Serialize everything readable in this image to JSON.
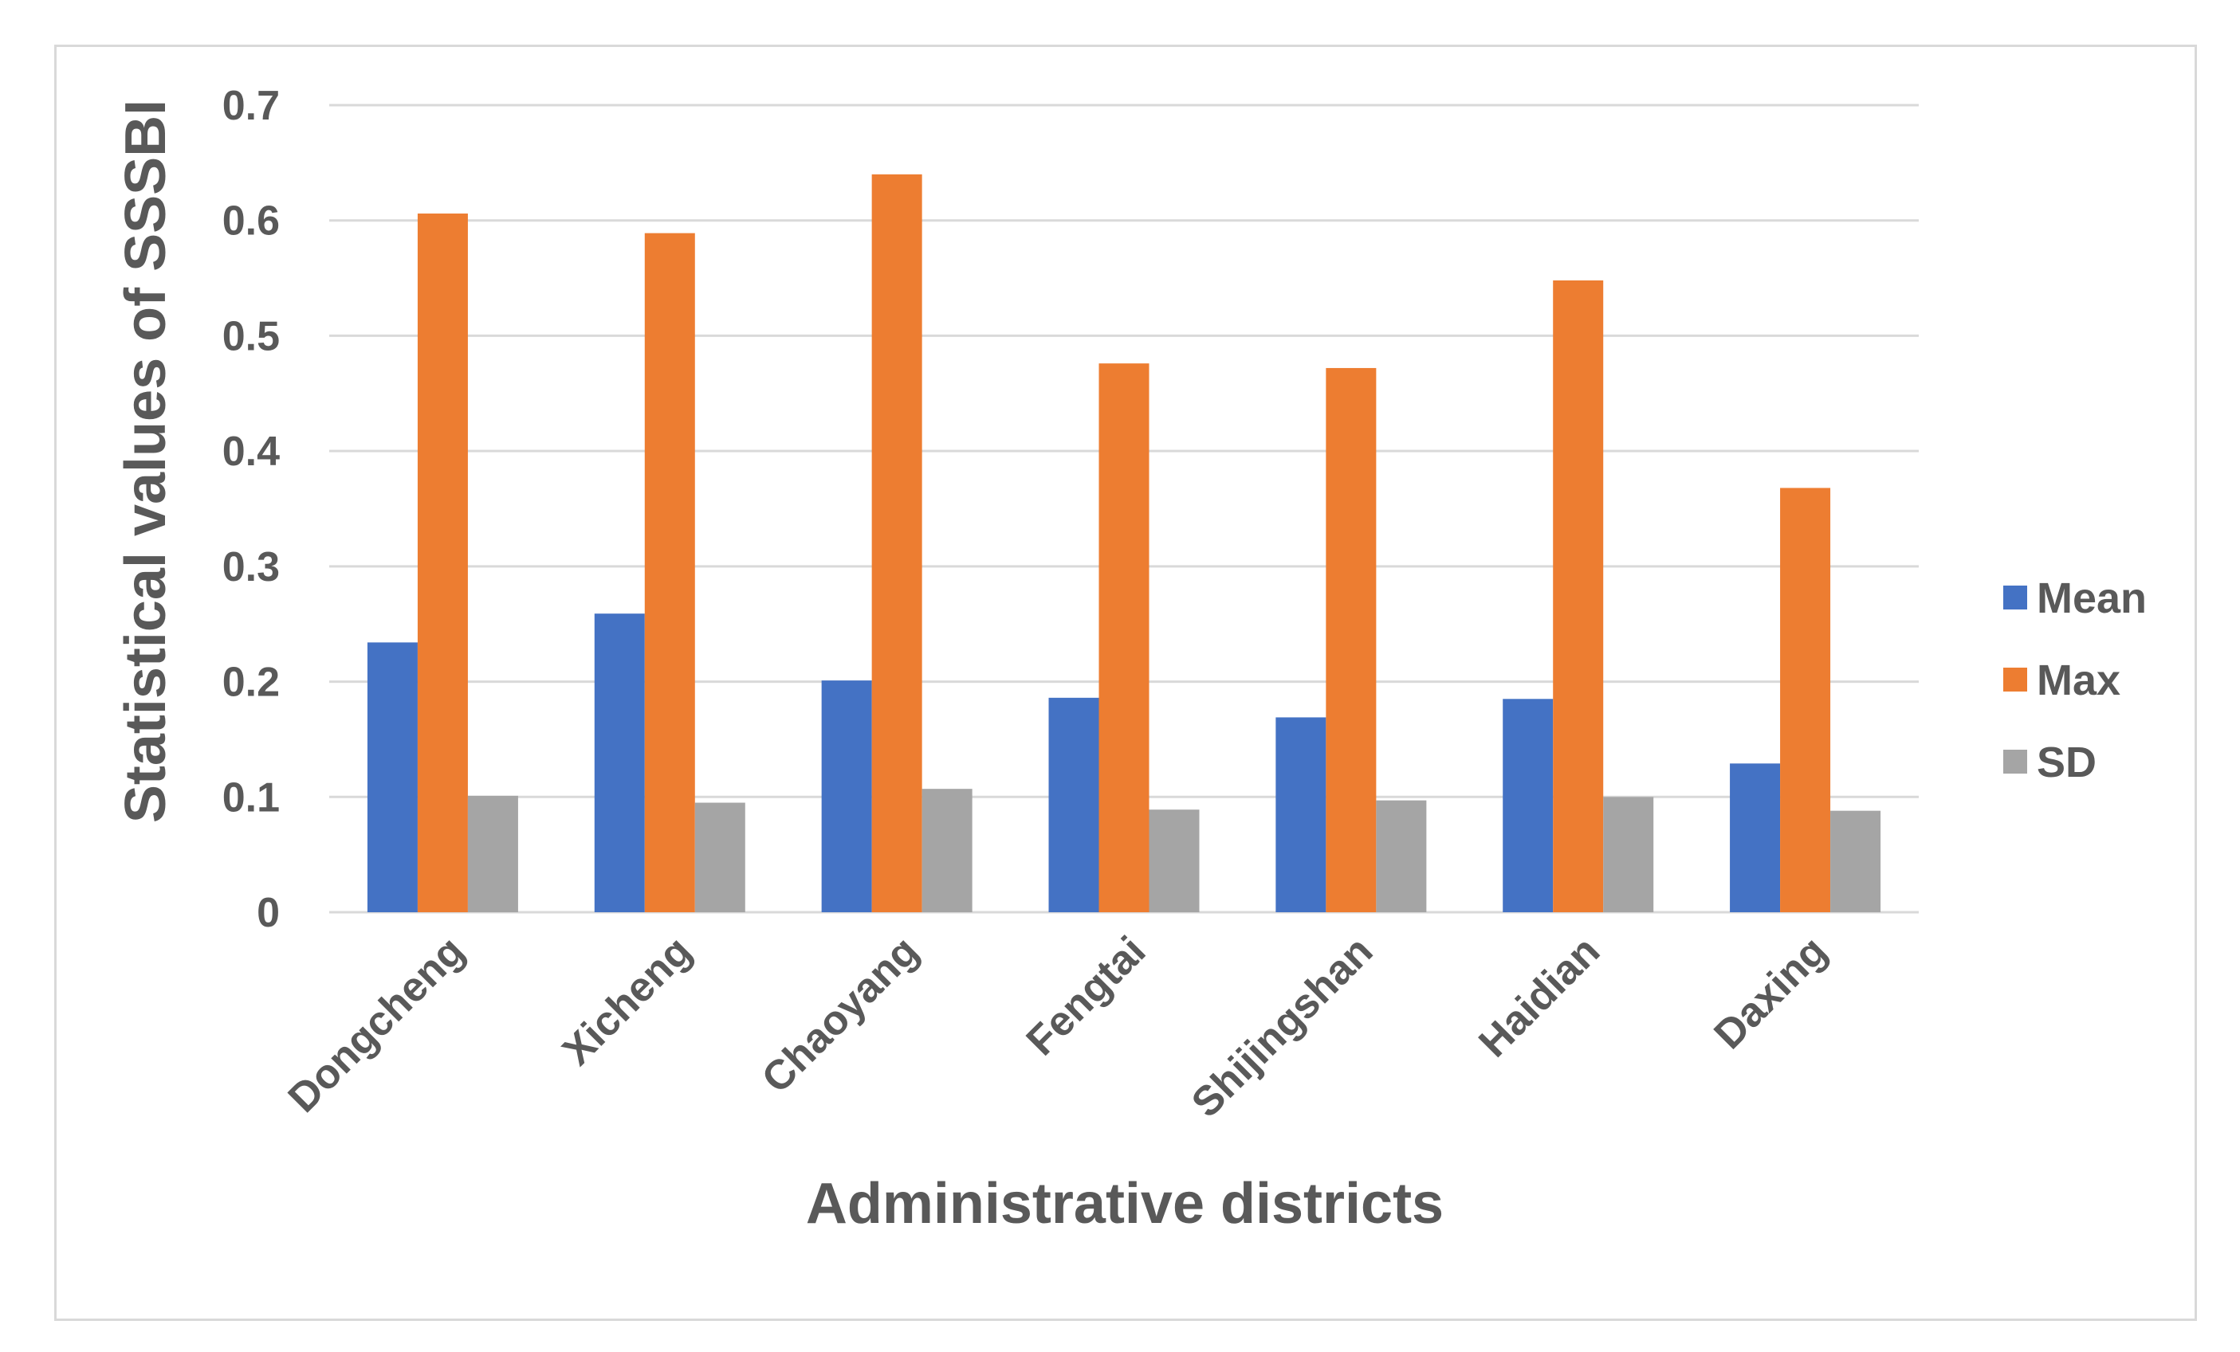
{
  "chart_data": {
    "type": "bar",
    "title": "",
    "xlabel": "Administrative districts",
    "ylabel": "Statistical values of SSSBI",
    "categories": [
      "Dongcheng",
      "Xicheng",
      "Chaoyang",
      "Fengtai",
      "Shijingshan",
      "Haidian",
      "Daxing"
    ],
    "series": [
      {
        "name": "Mean",
        "color": "#4472c4",
        "values": [
          0.234,
          0.259,
          0.201,
          0.186,
          0.169,
          0.185,
          0.129
        ]
      },
      {
        "name": "Max",
        "color": "#ed7d31",
        "values": [
          0.606,
          0.589,
          0.64,
          0.476,
          0.472,
          0.548,
          0.368
        ]
      },
      {
        "name": "SD",
        "color": "#a5a5a5",
        "values": [
          0.101,
          0.095,
          0.107,
          0.089,
          0.097,
          0.1,
          0.088
        ]
      }
    ],
    "ylim": [
      0,
      0.7
    ],
    "yticks": [
      "0",
      "0.1",
      "0.2",
      "0.3",
      "0.4",
      "0.5",
      "0.6",
      "0.7"
    ],
    "grid": true,
    "legend_position": "right"
  }
}
